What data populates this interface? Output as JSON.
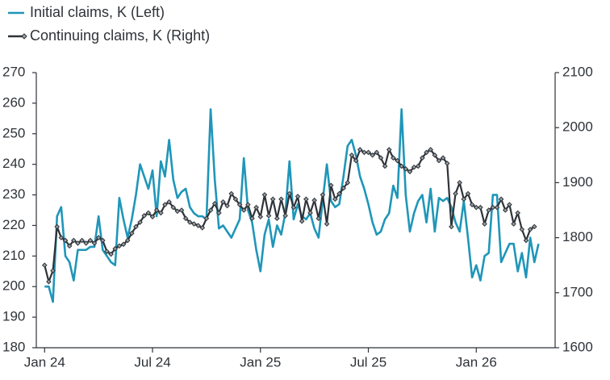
{
  "chart_data": {
    "type": "line",
    "x": [
      0,
      1,
      2,
      3,
      4,
      5,
      6,
      7,
      8,
      9,
      10,
      11,
      12,
      13,
      14,
      15,
      16,
      17,
      18,
      19,
      20,
      21,
      22,
      23,
      24,
      25,
      26,
      27,
      28,
      29,
      30,
      31,
      32,
      33,
      34,
      35,
      36,
      37,
      38,
      39,
      40,
      41,
      42,
      43,
      44,
      45,
      46,
      47,
      48,
      49,
      50,
      51,
      52,
      53,
      54,
      55,
      56,
      57,
      58,
      59,
      60,
      61,
      62,
      63,
      64,
      65,
      66,
      67,
      68,
      69,
      70,
      71,
      72,
      73,
      74,
      75,
      76,
      77,
      78,
      79,
      80,
      81,
      82,
      83,
      84,
      85,
      86,
      87,
      88,
      89,
      90,
      91,
      92,
      93,
      94,
      95,
      96,
      97,
      98,
      99,
      100,
      101,
      102,
      103,
      104,
      105,
      106,
      107,
      108,
      109,
      110,
      111,
      112,
      113,
      114,
      115,
      116,
      117,
      118,
      119
    ],
    "series": [
      {
        "name": "Initial claims, K (Left)",
        "color": "#1f96b9",
        "axis": "y",
        "markers": false,
        "values": [
          200,
          200,
          195,
          223,
          226,
          210,
          208,
          202,
          212,
          212,
          212,
          213,
          213,
          223,
          212,
          210,
          208,
          207,
          229,
          222,
          216,
          222,
          230,
          240,
          236,
          232,
          238,
          223,
          241,
          236,
          248,
          235,
          229,
          231,
          232,
          226,
          224,
          223,
          223,
          222,
          258,
          235,
          219,
          220,
          218,
          216,
          219,
          222,
          242,
          225,
          221,
          212,
          205,
          217,
          222,
          213,
          220,
          217,
          224,
          241,
          222,
          227,
          223,
          222,
          224,
          219,
          216,
          228,
          240,
          228,
          226,
          227,
          236,
          246,
          248,
          243,
          236,
          232,
          227,
          221,
          217,
          218,
          222,
          224,
          233,
          229,
          258,
          230,
          218,
          224,
          228,
          230,
          221,
          232,
          218,
          229,
          228,
          229,
          226,
          221,
          218,
          228,
          216,
          203,
          207,
          202,
          210,
          211,
          230,
          230,
          208,
          211,
          214,
          214,
          205,
          211,
          203,
          216,
          208,
          214
        ]
      },
      {
        "name": "Continuing claims, K (Right)",
        "color": "#2e3338",
        "axis": "y2",
        "markers": true,
        "values": [
          1750,
          1720,
          1740,
          1820,
          1800,
          1795,
          1785,
          1795,
          1790,
          1795,
          1790,
          1795,
          1790,
          1800,
          1795,
          1775,
          1770,
          1780,
          1785,
          1788,
          1795,
          1808,
          1820,
          1828,
          1840,
          1845,
          1838,
          1850,
          1845,
          1860,
          1865,
          1855,
          1848,
          1850,
          1835,
          1828,
          1825,
          1822,
          1818,
          1835,
          1850,
          1862,
          1845,
          1865,
          1858,
          1880,
          1870,
          1860,
          1850,
          1860,
          1835,
          1855,
          1838,
          1878,
          1840,
          1870,
          1835,
          1870,
          1840,
          1880,
          1855,
          1875,
          1830,
          1870,
          1845,
          1868,
          1835,
          1878,
          1825,
          1895,
          1870,
          1880,
          1890,
          1900,
          1950,
          1940,
          1960,
          1955,
          1955,
          1950,
          1955,
          1945,
          1930,
          1960,
          1945,
          1940,
          1930,
          1925,
          1920,
          1928,
          1930,
          1945,
          1955,
          1960,
          1950,
          1940,
          1945,
          1935,
          1820,
          1880,
          1900,
          1870,
          1880,
          1860,
          1855,
          1855,
          1825,
          1850,
          1855,
          1855,
          1870,
          1850,
          1860,
          1825,
          1845,
          1815,
          1795,
          1815,
          1820,
          null
        ]
      }
    ],
    "xlim": [
      -2,
      123
    ],
    "xticks": [
      {
        "value": 0,
        "label": "Jan 24"
      },
      {
        "value": 26,
        "label": "Jul 24"
      },
      {
        "value": 52,
        "label": "Jan 25"
      },
      {
        "value": 78,
        "label": "Jul 25"
      },
      {
        "value": 104,
        "label": "Jan 26"
      }
    ],
    "ylim": [
      180,
      270
    ],
    "yticks": [
      180,
      190,
      200,
      210,
      220,
      230,
      240,
      250,
      260,
      270
    ],
    "y2lim": [
      1600,
      2100
    ],
    "y2ticks": [
      1600,
      1700,
      1800,
      1900,
      2000,
      2100
    ],
    "grid": false,
    "legend": "top-left"
  }
}
